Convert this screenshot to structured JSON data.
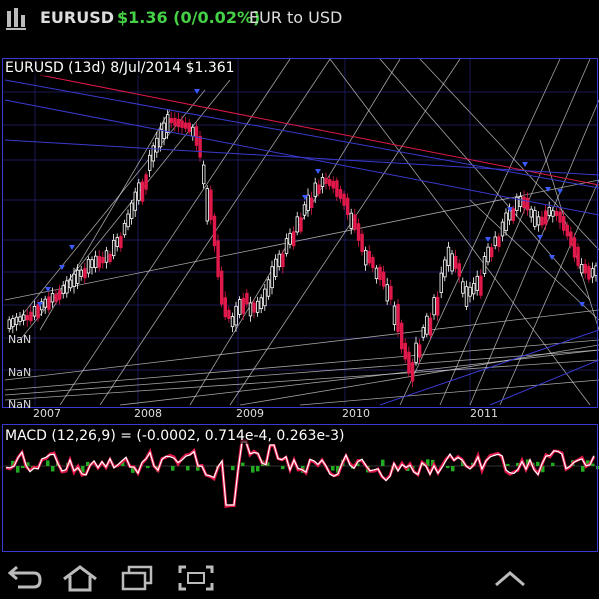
{
  "status": {
    "symbol": "EURUSD",
    "quote": "$1.36 (0/0.02%)",
    "description": "EUR to USD",
    "icon": "bars-menu-icon"
  },
  "price_chart": {
    "title": "EURUSD (13d) 8/Jul/2014 $1.361",
    "nan_labels": [
      "NaN",
      "NaN",
      "NaN"
    ],
    "x_ticks": [
      "2007",
      "2008",
      "2009",
      "2010",
      "2011"
    ]
  },
  "macd_chart": {
    "title": "MACD (12,26,9) = (-0.0002, 0.714e-4, 0.263e-3)"
  },
  "chart_data": [
    {
      "type": "candlestick",
      "title": "EURUSD (13d) 8/Jul/2014 $1.361",
      "x_ticks": [
        "2007",
        "2008",
        "2009",
        "2010",
        "2011"
      ],
      "y_tick_labels": [
        "NaN",
        "NaN",
        "NaN"
      ],
      "colors": {
        "up": "#ffffff",
        "down": "#e0194a",
        "trendline": "#3a3ad0",
        "fan": "#cccccc"
      }
    },
    {
      "type": "line",
      "title": "MACD (12,26,9) = (-0.0002, 0.714e-4, 0.263e-3)",
      "values": {
        "macd": -0.0002,
        "signal": 7.14e-05,
        "histogram": 0.000263
      },
      "colors": {
        "macd": "#ffffff",
        "signal": "#e0194a",
        "histogram": "#22aa22"
      }
    }
  ],
  "nav": {
    "back": "back-icon",
    "home": "home-icon",
    "recents": "recent-apps-icon",
    "screenshot": "screenshot-icon",
    "menu": "chevron-up-icon"
  }
}
